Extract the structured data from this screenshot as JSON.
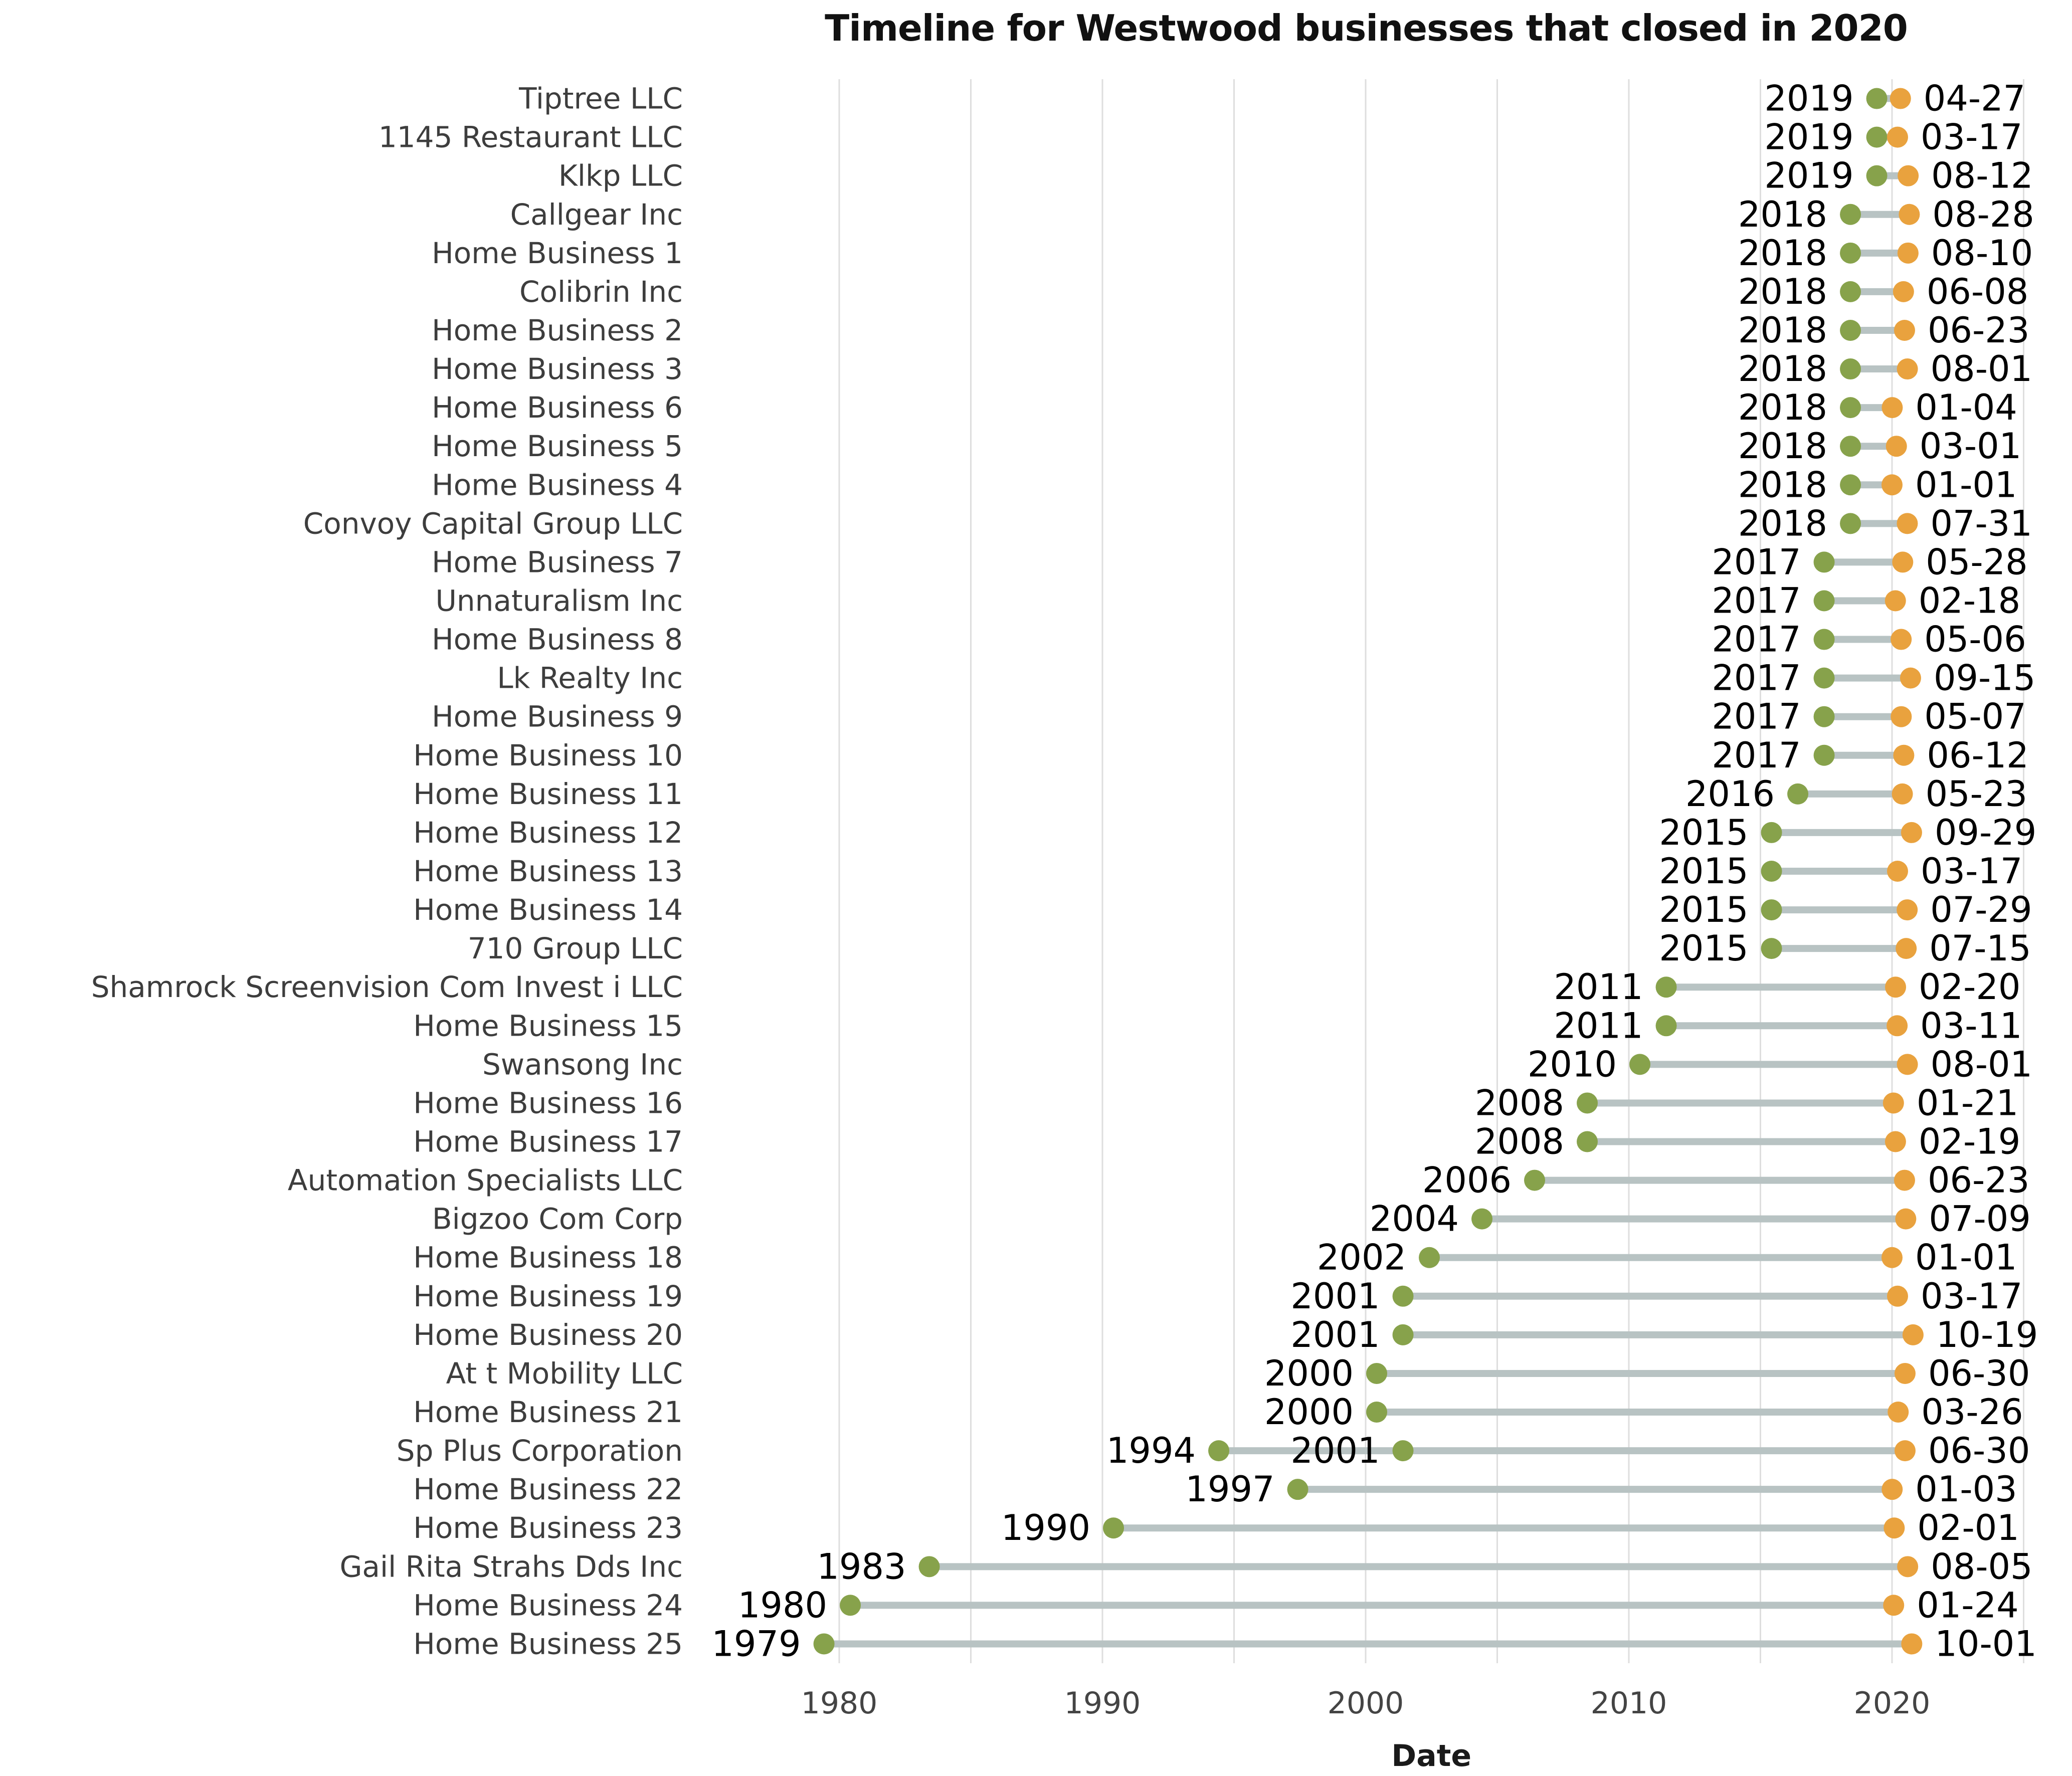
{
  "chart_data": {
    "type": "scatter",
    "subtype": "dumbbell_timeline",
    "title": "Timeline for Westwood businesses that closed in 2020",
    "xlabel": "Date",
    "close_year": 2020,
    "x_axis": {
      "ticks": [
        1980,
        1990,
        2000,
        2010,
        2020
      ],
      "grid_years": [
        1980,
        1985,
        1990,
        1995,
        2000,
        2005,
        2010,
        2015,
        2020,
        2025
      ],
      "range": [
        1977.5,
        2026.5
      ],
      "grid": "on"
    },
    "legend": "none",
    "colors": {
      "start_dot": "#87a24b",
      "end_dot": "#e9a23e",
      "line": "#b8c3c3",
      "grid": "#dedede",
      "row_label": "#3d3d3d",
      "tick_label": "#444444",
      "annotation": "#000000",
      "title": "#111111"
    },
    "rows": [
      {
        "label": "Tiptree LLC",
        "start_label": "2019",
        "start_year": 2019,
        "end_date": "04-27"
      },
      {
        "label": "1145 Restaurant LLC",
        "start_label": "2019",
        "start_year": 2019,
        "end_date": "03-17"
      },
      {
        "label": "Klkp LLC",
        "start_label": "2019",
        "start_year": 2019,
        "end_date": "08-12"
      },
      {
        "label": "Callgear Inc",
        "start_label": "2018",
        "start_year": 2018,
        "end_date": "08-28"
      },
      {
        "label": "Home Business 1",
        "start_label": "2018",
        "start_year": 2018,
        "end_date": "08-10"
      },
      {
        "label": "Colibrin Inc",
        "start_label": "2018",
        "start_year": 2018,
        "end_date": "06-08"
      },
      {
        "label": "Home Business 2",
        "start_label": "2018",
        "start_year": 2018,
        "end_date": "06-23"
      },
      {
        "label": "Home Business 3",
        "start_label": "2018",
        "start_year": 2018,
        "end_date": "08-01"
      },
      {
        "label": "Home Business 6",
        "start_label": "2018",
        "start_year": 2018,
        "end_date": "01-04"
      },
      {
        "label": "Home Business 5",
        "start_label": "2018",
        "start_year": 2018,
        "end_date": "03-01"
      },
      {
        "label": "Home Business 4",
        "start_label": "2018",
        "start_year": 2018,
        "end_date": "01-01"
      },
      {
        "label": "Convoy Capital Group LLC",
        "start_label": "2018",
        "start_year": 2018,
        "end_date": "07-31"
      },
      {
        "label": "Home Business 7",
        "start_label": "2017",
        "start_year": 2017,
        "end_date": "05-28"
      },
      {
        "label": "Unnaturalism Inc",
        "start_label": "2017",
        "start_year": 2017,
        "end_date": "02-18"
      },
      {
        "label": "Home Business 8",
        "start_label": "2017",
        "start_year": 2017,
        "end_date": "05-06"
      },
      {
        "label": "Lk Realty Inc",
        "start_label": "2017",
        "start_year": 2017,
        "end_date": "09-15"
      },
      {
        "label": "Home Business 9",
        "start_label": "2017",
        "start_year": 2017,
        "end_date": "05-07"
      },
      {
        "label": "Home Business 10",
        "start_label": "2017",
        "start_year": 2017,
        "end_date": "06-12"
      },
      {
        "label": "Home Business 11",
        "start_label": "2016",
        "start_year": 2016,
        "end_date": "05-23"
      },
      {
        "label": "Home Business 12",
        "start_label": "2015",
        "start_year": 2015,
        "end_date": "09-29"
      },
      {
        "label": "Home Business 13",
        "start_label": "2015",
        "start_year": 2015,
        "end_date": "03-17"
      },
      {
        "label": "Home Business 14",
        "start_label": "2015",
        "start_year": 2015,
        "end_date": "07-29"
      },
      {
        "label": "710 Group LLC",
        "start_label": "2015",
        "start_year": 2015,
        "end_date": "07-15"
      },
      {
        "label": "Shamrock Screenvision Com Invest i LLC",
        "start_label": "2011",
        "start_year": 2011,
        "end_date": "02-20"
      },
      {
        "label": "Home Business 15",
        "start_label": "2011",
        "start_year": 2011,
        "end_date": "03-11"
      },
      {
        "label": "Swansong Inc",
        "start_label": "2010",
        "start_year": 2010,
        "end_date": "08-01"
      },
      {
        "label": "Home Business 16",
        "start_label": "2008",
        "start_year": 2008,
        "end_date": "01-21"
      },
      {
        "label": "Home Business 17",
        "start_label": "2008",
        "start_year": 2008,
        "end_date": "02-19"
      },
      {
        "label": "Automation Specialists LLC",
        "start_label": "2006",
        "start_year": 2006,
        "end_date": "06-23"
      },
      {
        "label": "Bigzoo Com Corp",
        "start_label": "2004",
        "start_year": 2004,
        "end_date": "07-09"
      },
      {
        "label": "Home Business 18",
        "start_label": "2002",
        "start_year": 2002,
        "end_date": "01-01"
      },
      {
        "label": "Home Business 19",
        "start_label": "2001",
        "start_year": 2001,
        "end_date": "03-17"
      },
      {
        "label": "Home Business 20",
        "start_label": "2001",
        "start_year": 2001,
        "end_date": "10-19"
      },
      {
        "label": "At t Mobility LLC",
        "start_label": "2000",
        "start_year": 2000,
        "end_date": "06-30"
      },
      {
        "label": "Home Business 21",
        "start_label": "2000",
        "start_year": 2000,
        "end_date": "03-26"
      },
      {
        "label": "Sp Plus Corporation",
        "start_label": "1994",
        "start_year": 1994,
        "extra_start_label": "2001",
        "extra_start_year": 2001,
        "end_date": "06-30"
      },
      {
        "label": "Home Business 22",
        "start_label": "1997",
        "start_year": 1997,
        "end_date": "01-03"
      },
      {
        "label": "Home Business 23",
        "start_label": "1990",
        "start_year": 1990,
        "end_date": "02-01"
      },
      {
        "label": "Gail Rita Strahs Dds Inc",
        "start_label": "1983",
        "start_year": 1983,
        "end_date": "08-05"
      },
      {
        "label": "Home Business 24",
        "start_label": "1980",
        "start_year": 1980,
        "end_date": "01-24"
      },
      {
        "label": "Home Business 25",
        "start_label": "1979",
        "start_year": 1979,
        "end_date": "10-01"
      }
    ]
  }
}
